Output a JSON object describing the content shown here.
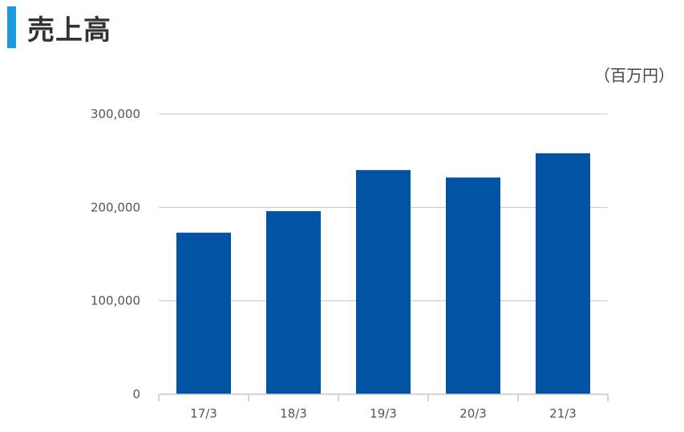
{
  "page": {
    "title": "売上高",
    "unit_label": "（百万円）",
    "accent_color": "#1a9be0"
  },
  "chart_data": {
    "type": "bar",
    "categories": [
      "17/3",
      "18/3",
      "19/3",
      "20/3",
      "21/3"
    ],
    "series": [
      {
        "values": [
          173000,
          196000,
          240000,
          232000,
          258000
        ],
        "color": "#0052a3"
      }
    ],
    "ylim": [
      0,
      300000
    ],
    "yticks": [
      0,
      100000,
      200000,
      300000
    ],
    "ytick_labels": [
      "0",
      "100,000",
      "200,000",
      "300,000"
    ],
    "grid": true,
    "grid_color": "#c8c8c8",
    "legend": "none"
  }
}
